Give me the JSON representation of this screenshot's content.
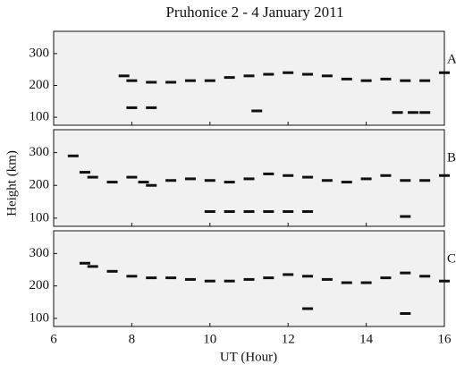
{
  "chart_data": {
    "type": "scatter",
    "title": "Pruhonice 2 - 4 January 2011",
    "x_label": "UT (Hour)",
    "y_label": "Height (km)",
    "xlim": [
      6,
      16
    ],
    "xticks": [
      6,
      8,
      10,
      12,
      14,
      16
    ],
    "color": "#111111",
    "panels": [
      {
        "label": "A",
        "ylim": [
          75,
          370
        ],
        "yticks": [
          100,
          200,
          300
        ],
        "x": [
          7.8,
          8,
          8.5,
          9,
          9.5,
          10,
          10.5,
          11,
          11.5,
          12,
          12.5,
          13,
          13.5,
          14,
          14.5,
          15,
          15.5,
          16,
          8,
          8.5,
          11.2,
          14.8,
          15.2,
          15.5
        ],
        "values": [
          230,
          215,
          210,
          210,
          215,
          215,
          225,
          230,
          235,
          240,
          235,
          230,
          220,
          215,
          220,
          215,
          215,
          240,
          130,
          130,
          120,
          115,
          115,
          115
        ]
      },
      {
        "label": "B",
        "ylim": [
          75,
          370
        ],
        "yticks": [
          100,
          200,
          300
        ],
        "x": [
          6.5,
          6.8,
          7,
          7.5,
          8,
          8.3,
          8.5,
          9,
          9.5,
          10,
          10.5,
          11,
          11.5,
          12,
          12.5,
          13,
          13.5,
          14,
          14.5,
          15,
          15.5,
          16,
          10,
          10.5,
          11,
          11.5,
          12,
          12.5,
          15
        ],
        "values": [
          290,
          240,
          225,
          210,
          225,
          210,
          200,
          215,
          220,
          215,
          210,
          220,
          235,
          230,
          225,
          215,
          210,
          220,
          230,
          215,
          215,
          230,
          120,
          120,
          120,
          120,
          120,
          120,
          105
        ]
      },
      {
        "label": "C",
        "ylim": [
          75,
          370
        ],
        "yticks": [
          100,
          200,
          300
        ],
        "x": [
          6.8,
          7,
          7.5,
          8,
          8.5,
          9,
          9.5,
          10,
          10.5,
          11,
          11.5,
          12,
          12.5,
          13,
          13.5,
          14,
          14.5,
          15,
          15.5,
          16,
          12.5,
          15
        ],
        "values": [
          270,
          260,
          245,
          230,
          225,
          225,
          220,
          215,
          215,
          220,
          225,
          235,
          230,
          220,
          210,
          210,
          225,
          240,
          230,
          215,
          130,
          115
        ]
      }
    ]
  }
}
